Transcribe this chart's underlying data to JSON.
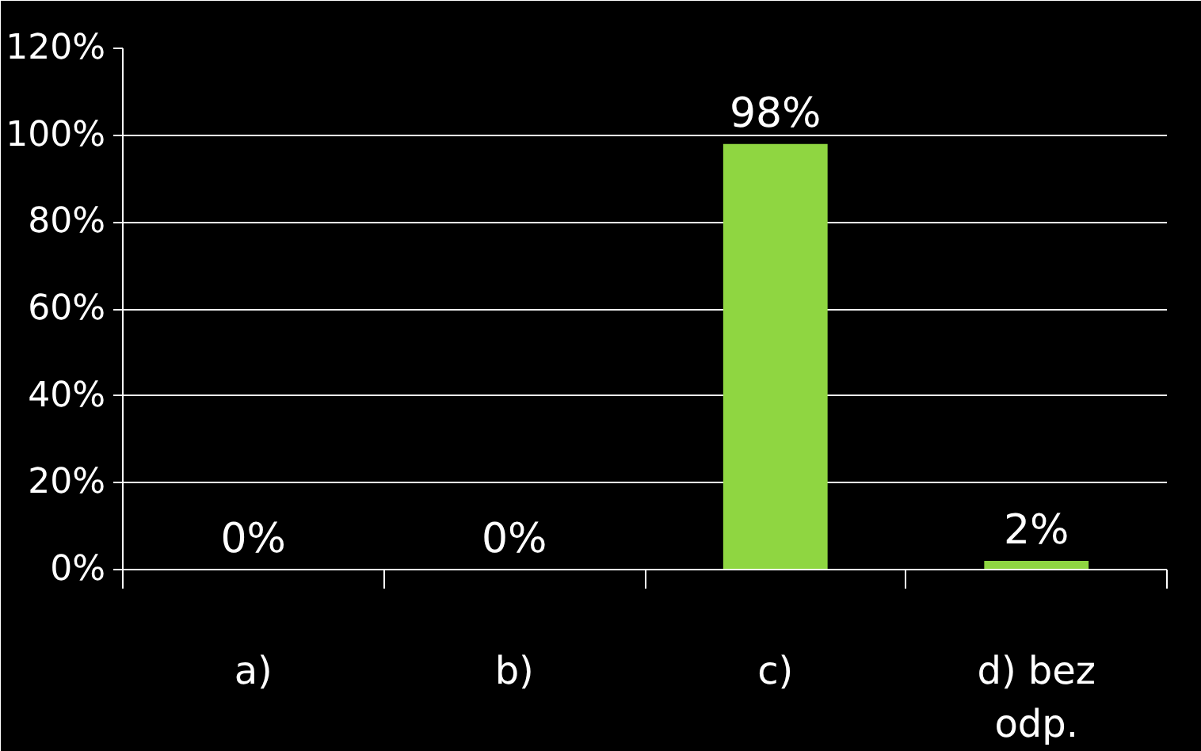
{
  "chart_data": {
    "type": "bar",
    "categories": [
      "a)",
      "b)",
      "c)",
      "d) bez odp."
    ],
    "values": [
      0,
      0,
      98,
      2
    ],
    "color": "#8fd641",
    "ylim": [
      0,
      120
    ],
    "yticks": [
      {
        "value": 0,
        "label": "0%"
      },
      {
        "value": 20,
        "label": "20%"
      },
      {
        "value": 40,
        "label": "40%"
      },
      {
        "value": 60,
        "label": "60%"
      },
      {
        "value": 80,
        "label": "80%"
      },
      {
        "value": 100,
        "label": "100%"
      },
      {
        "value": 120,
        "label": "120%"
      }
    ],
    "value_labels": [
      "0%",
      "0%",
      "98%",
      "2%"
    ],
    "grid": "y"
  }
}
